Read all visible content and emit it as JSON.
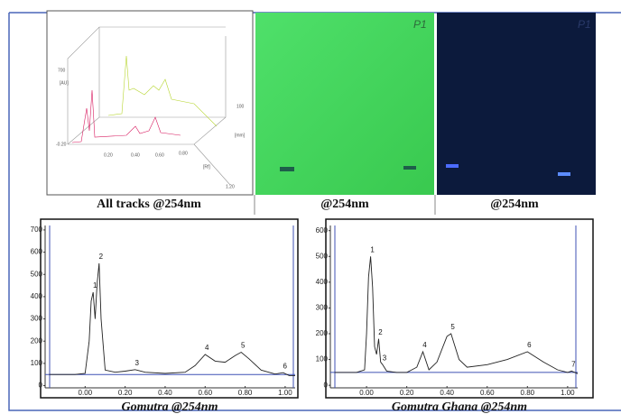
{
  "panels": [
    {
      "caption": "All tracks @254nm"
    },
    {
      "caption": "@254nm",
      "mark": "P1"
    },
    {
      "caption": "@254nm",
      "mark": "P1"
    }
  ],
  "surface_plot": {
    "labels": [
      "700",
      "[AU]",
      "-0.20",
      "0.20",
      "0.40",
      "0.60",
      "0.80",
      "[Rf]",
      "[mm]",
      "100",
      "1.20"
    ]
  },
  "chart_data": [
    {
      "type": "line",
      "caption": "Gomutra @254nm",
      "x": [
        -0.18,
        -0.05,
        0.0,
        0.02,
        0.03,
        0.04,
        0.05,
        0.06,
        0.07,
        0.08,
        0.1,
        0.15,
        0.2,
        0.25,
        0.3,
        0.4,
        0.5,
        0.55,
        0.6,
        0.65,
        0.7,
        0.75,
        0.78,
        0.82,
        0.88,
        0.95,
        0.99,
        1.02,
        1.05
      ],
      "series": [
        {
          "color": "#222222",
          "values": [
            50,
            50,
            55,
            200,
            380,
            420,
            300,
            460,
            550,
            300,
            70,
            60,
            65,
            72,
            60,
            55,
            60,
            90,
            140,
            110,
            105,
            135,
            150,
            120,
            70,
            52,
            58,
            45,
            45
          ]
        }
      ],
      "baseline": 50,
      "peaks": [
        {
          "label": "1",
          "x": 0.04,
          "y": 420
        },
        {
          "label": "2",
          "x": 0.07,
          "y": 550
        },
        {
          "label": "3",
          "x": 0.25,
          "y": 72
        },
        {
          "label": "4",
          "x": 0.6,
          "y": 140
        },
        {
          "label": "5",
          "x": 0.78,
          "y": 150
        },
        {
          "label": "6",
          "x": 0.99,
          "y": 58
        }
      ],
      "xlim": [
        -0.2,
        1.05
      ],
      "ylim": [
        -10,
        720
      ],
      "xticks": [
        {
          "value": 0,
          "label": "0.00"
        },
        {
          "value": 0.2,
          "label": "0.20"
        },
        {
          "value": 0.4,
          "label": "0.40"
        },
        {
          "value": 0.6,
          "label": "0.60"
        },
        {
          "value": 0.8,
          "label": "0.80"
        },
        {
          "value": 1,
          "label": "1.00"
        }
      ],
      "yticks": [
        0,
        100,
        200,
        300,
        400,
        500,
        600,
        700
      ]
    },
    {
      "type": "line",
      "caption": "Gomutra Ghana @254nm",
      "x": [
        -0.16,
        -0.05,
        -0.01,
        0.0,
        0.01,
        0.02,
        0.03,
        0.04,
        0.05,
        0.06,
        0.07,
        0.08,
        0.1,
        0.15,
        0.2,
        0.25,
        0.28,
        0.31,
        0.35,
        0.4,
        0.42,
        0.46,
        0.5,
        0.6,
        0.7,
        0.8,
        0.88,
        0.95,
        1.0,
        1.02,
        1.05
      ],
      "series": [
        {
          "color": "#222222",
          "values": [
            50,
            50,
            60,
            200,
            420,
            500,
            380,
            150,
            120,
            180,
            90,
            80,
            55,
            50,
            50,
            70,
            130,
            60,
            90,
            190,
            200,
            100,
            70,
            80,
            100,
            130,
            90,
            60,
            50,
            55,
            45
          ]
        }
      ],
      "baseline": 50,
      "peaks": [
        {
          "label": "1",
          "x": 0.02,
          "y": 500
        },
        {
          "label": "2",
          "x": 0.06,
          "y": 180
        },
        {
          "label": "3",
          "x": 0.08,
          "y": 80
        },
        {
          "label": "4",
          "x": 0.28,
          "y": 130
        },
        {
          "label": "5",
          "x": 0.42,
          "y": 200
        },
        {
          "label": "6",
          "x": 0.8,
          "y": 130
        },
        {
          "label": "7",
          "x": 1.02,
          "y": 55
        }
      ],
      "xlim": [
        -0.18,
        1.05
      ],
      "ylim": [
        -10,
        620
      ],
      "xticks": [
        {
          "value": 0,
          "label": "0.00"
        },
        {
          "value": 0.2,
          "label": "0.20"
        },
        {
          "value": 0.4,
          "label": "0.40"
        },
        {
          "value": 0.6,
          "label": "0.60"
        },
        {
          "value": 0.8,
          "label": "0.80"
        },
        {
          "value": 1,
          "label": "1.00"
        }
      ],
      "yticks": [
        0,
        100,
        200,
        300,
        400,
        500,
        600
      ]
    }
  ]
}
